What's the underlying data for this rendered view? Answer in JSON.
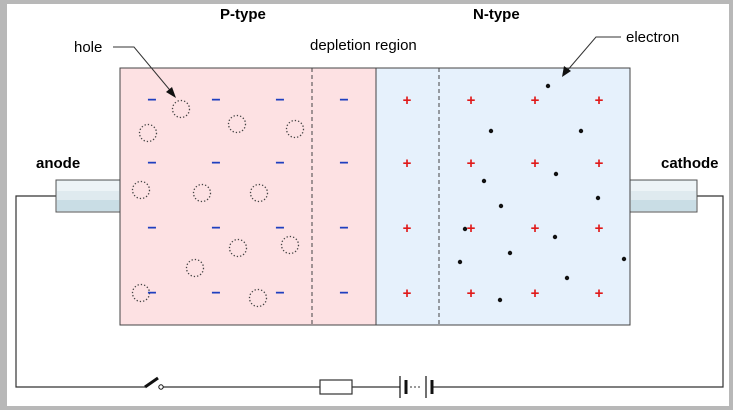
{
  "labels": {
    "p_type": "P-type",
    "n_type": "N-type",
    "depletion_region": "depletion region",
    "hole": "hole",
    "electron": "electron",
    "anode": "anode",
    "cathode": "cathode"
  },
  "charge_symbols": {
    "minus": "−",
    "plus": "+"
  },
  "colors": {
    "p_region": "#fde1e3",
    "n_region": "#e6f1fc",
    "negative_charge": "#1f3fbf",
    "positive_charge": "#e01a1a",
    "electrode": "#d8e8ee",
    "frame_border": "#b5b5b5"
  }
}
